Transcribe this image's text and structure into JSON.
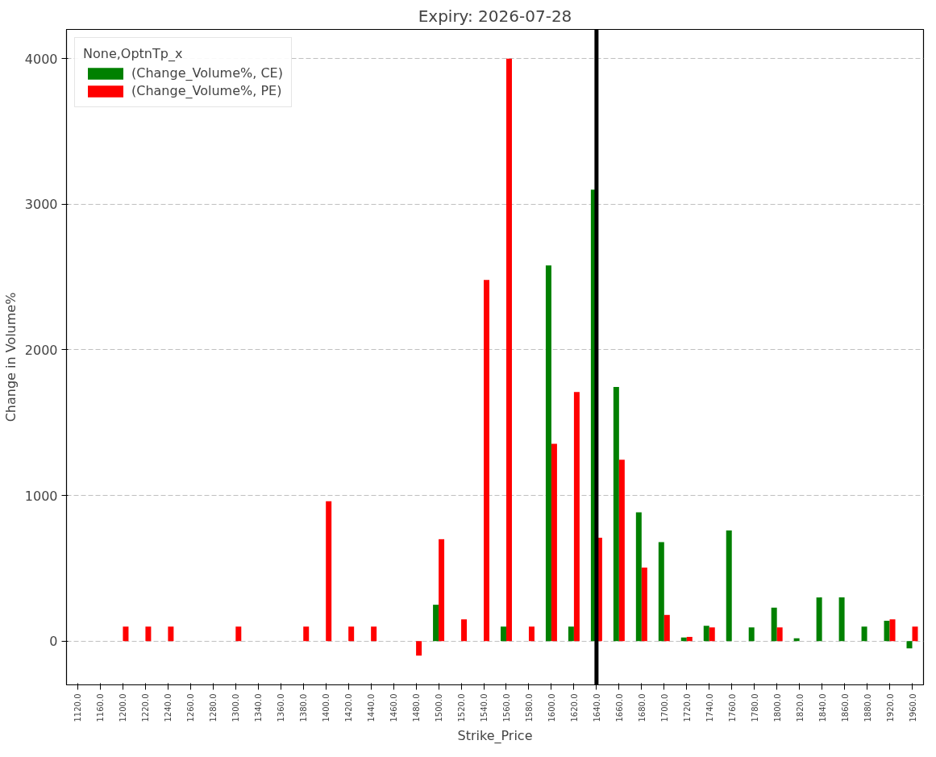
{
  "chart_data": {
    "type": "bar",
    "title": "Expiry: 2026-07-28",
    "xlabel": "Strike_Price",
    "ylabel": "Change in Volume%",
    "legend_title": "None,OptnTp_x",
    "categories": [
      "1120.0",
      "1160.0",
      "1200.0",
      "1220.0",
      "1240.0",
      "1260.0",
      "1280.0",
      "1300.0",
      "1340.0",
      "1360.0",
      "1380.0",
      "1400.0",
      "1420.0",
      "1440.0",
      "1460.0",
      "1480.0",
      "1500.0",
      "1520.0",
      "1540.0",
      "1560.0",
      "1580.0",
      "1600.0",
      "1620.0",
      "1640.0",
      "1660.0",
      "1680.0",
      "1700.0",
      "1720.0",
      "1740.0",
      "1760.0",
      "1780.0",
      "1800.0",
      "1820.0",
      "1840.0",
      "1860.0",
      "1880.0",
      "1920.0",
      "1960.0"
    ],
    "series": [
      {
        "name": "(Change_Volume%, CE)",
        "color": "#008000",
        "values": [
          0,
          0,
          0,
          0,
          0,
          0,
          0,
          0,
          0,
          0,
          0,
          0,
          0,
          0,
          0,
          0,
          250,
          0,
          0,
          100,
          0,
          2580,
          100,
          3100,
          1745,
          885,
          680,
          25,
          105,
          760,
          95,
          230,
          20,
          300,
          300,
          100,
          140,
          -50
        ]
      },
      {
        "name": "(Change_Volume%, PE)",
        "color": "#ff0000",
        "values": [
          0,
          0,
          100,
          100,
          100,
          0,
          0,
          100,
          0,
          0,
          100,
          960,
          100,
          100,
          0,
          -100,
          700,
          150,
          2480,
          4000,
          100,
          1355,
          1710,
          710,
          1245,
          505,
          180,
          30,
          95,
          0,
          0,
          95,
          0,
          0,
          0,
          0,
          150,
          100
        ]
      }
    ],
    "ylim": [
      -300,
      4200
    ],
    "yticks": [
      0,
      1000,
      2000,
      3000,
      4000
    ],
    "grid": "y",
    "legend": "top left",
    "ref_lines": [
      {
        "axis": "x",
        "value": "1640.0",
        "color": "#000000"
      }
    ]
  }
}
